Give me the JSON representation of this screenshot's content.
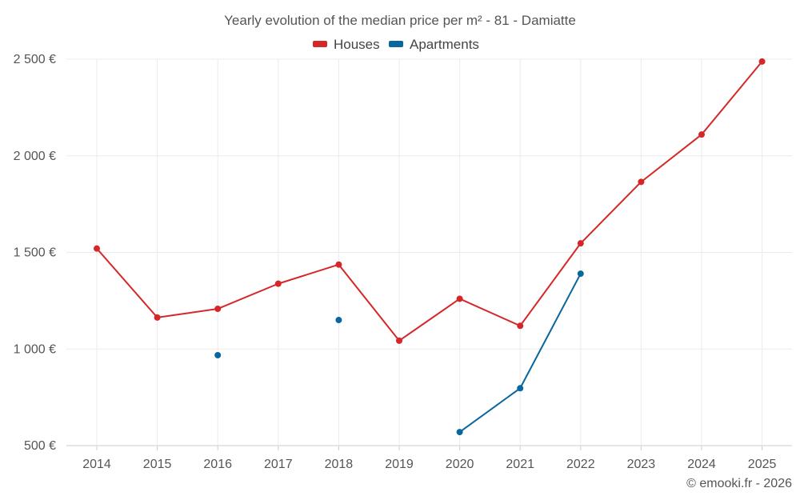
{
  "chart_data": {
    "type": "line",
    "title": "Yearly evolution of the median price per m² - 81 - Damiatte",
    "categories": [
      "2014",
      "2015",
      "2016",
      "2017",
      "2018",
      "2019",
      "2020",
      "2021",
      "2022",
      "2023",
      "2024",
      "2025"
    ],
    "ylim": [
      500,
      2500
    ],
    "yticks": [
      500,
      1000,
      1500,
      2000,
      2500
    ],
    "ytick_labels": [
      "500 €",
      "1 000 €",
      "1 500 €",
      "2 000 €",
      "2 500 €"
    ],
    "grid": true,
    "legend_position": "top-center",
    "series": [
      {
        "name": "Houses",
        "color": "#d62728",
        "values": [
          1520,
          1163,
          1208,
          1338,
          1437,
          1043,
          1260,
          1120,
          1547,
          1865,
          2110,
          2488
        ]
      },
      {
        "name": "Apartments",
        "color": "#08679c",
        "values": [
          null,
          null,
          968,
          null,
          1150,
          null,
          570,
          797,
          1390,
          null,
          null,
          null
        ]
      }
    ],
    "credit": "© emooki.fr - 2026"
  }
}
